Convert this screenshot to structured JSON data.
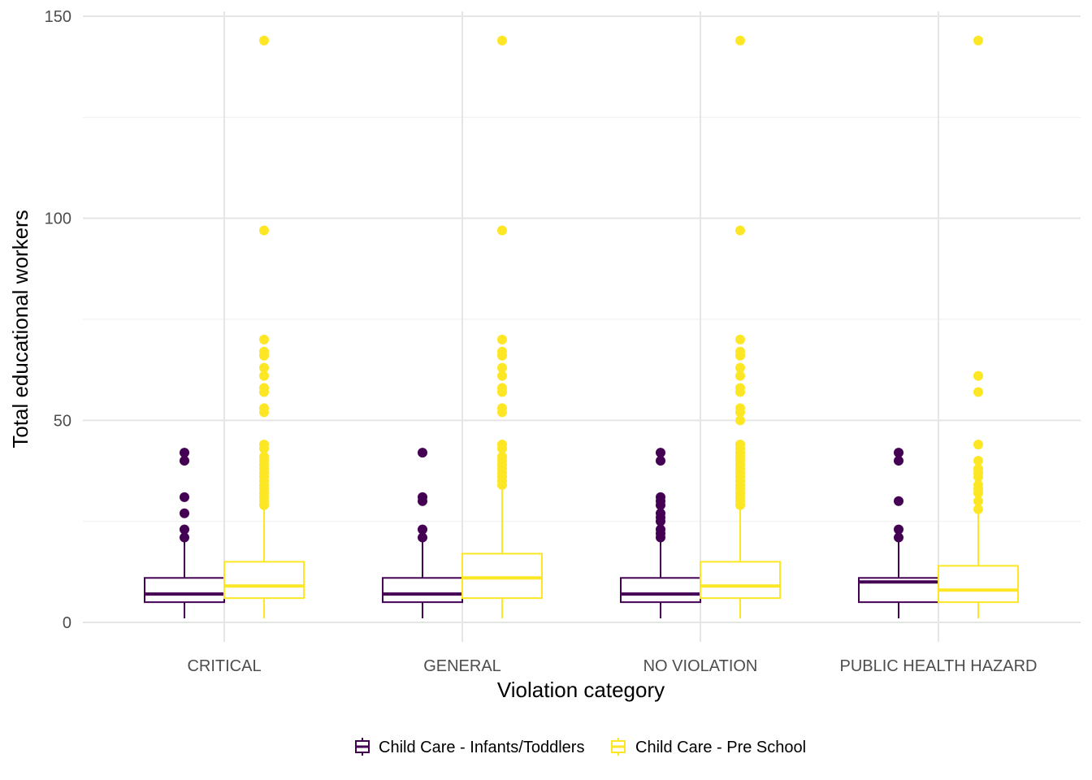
{
  "colors": {
    "infants": "#440154",
    "preschool": "#FDE725",
    "grid_major": "#E5E5E5",
    "grid_minor": "#F0F0F0"
  },
  "chart_data": {
    "type": "boxplot",
    "xlabel": "Violation category",
    "ylabel": "Total educational workers",
    "ylim": [
      -5,
      150
    ],
    "yticks": [
      0,
      50,
      100,
      150
    ],
    "grid": true,
    "legend_position": "bottom",
    "categories": [
      "CRITICAL",
      "GENERAL",
      "NO VIOLATION",
      "PUBLIC HEALTH HAZARD"
    ],
    "series": [
      {
        "name": "Child Care - Infants/Toddlers",
        "color": "#440154",
        "boxes": [
          {
            "category": "CRITICAL",
            "min": 1,
            "q1": 5,
            "median": 7,
            "q3": 11,
            "max": 20,
            "outliers": [
              21,
              23,
              27,
              31,
              40,
              42
            ]
          },
          {
            "category": "GENERAL",
            "min": 1,
            "q1": 5,
            "median": 7,
            "q3": 11,
            "max": 20,
            "outliers": [
              21,
              23,
              30,
              31,
              42
            ]
          },
          {
            "category": "NO VIOLATION",
            "min": 1,
            "q1": 5,
            "median": 7,
            "q3": 11,
            "max": 20,
            "outliers": [
              21,
              22,
              23,
              25,
              26,
              27,
              29,
              30,
              31,
              40,
              42
            ]
          },
          {
            "category": "PUBLIC HEALTH HAZARD",
            "min": 1,
            "q1": 5,
            "median": 10,
            "q3": 11,
            "max": 20,
            "outliers": [
              21,
              23,
              30,
              40,
              42
            ]
          }
        ]
      },
      {
        "name": "Child Care - Pre School",
        "color": "#FDE725",
        "boxes": [
          {
            "category": "CRITICAL",
            "min": 1,
            "q1": 6,
            "median": 9,
            "q3": 15,
            "max": 28,
            "outliers": [
              29,
              30,
              31,
              32,
              33,
              34,
              35,
              36,
              37,
              38,
              39,
              40,
              41,
              43,
              44,
              52,
              53,
              57,
              58,
              61,
              63,
              66,
              67,
              70,
              97,
              144
            ]
          },
          {
            "category": "GENERAL",
            "min": 1,
            "q1": 6,
            "median": 11,
            "q3": 17,
            "max": 33,
            "outliers": [
              34,
              35,
              36,
              37,
              38,
              39,
              40,
              41,
              43,
              44,
              52,
              53,
              57,
              58,
              61,
              63,
              66,
              67,
              70,
              97,
              144
            ]
          },
          {
            "category": "NO VIOLATION",
            "min": 1,
            "q1": 6,
            "median": 9,
            "q3": 15,
            "max": 28,
            "outliers": [
              29,
              30,
              31,
              32,
              33,
              34,
              35,
              36,
              37,
              38,
              39,
              40,
              41,
              42,
              43,
              44,
              50,
              52,
              53,
              57,
              58,
              61,
              63,
              66,
              67,
              70,
              97,
              144
            ]
          },
          {
            "category": "PUBLIC HEALTH HAZARD",
            "min": 1,
            "q1": 5,
            "median": 8,
            "q3": 14,
            "max": 27,
            "outliers": [
              28,
              30,
              32,
              33,
              34,
              36,
              37,
              38,
              40,
              44,
              57,
              61,
              144
            ]
          }
        ]
      }
    ]
  }
}
